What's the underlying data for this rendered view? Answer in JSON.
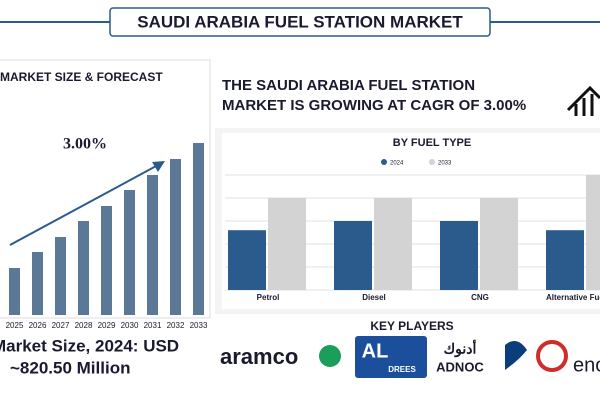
{
  "header": {
    "title": "SAUDI ARABIA FUEL STATION MARKET"
  },
  "headline": [
    "THE SAUDI ARABIA FUEL STATION",
    "MARKET IS GROWING AT CAGR OF 3.00%"
  ],
  "market_size": [
    "Market Size, 2024: USD",
    "~820.50 Million"
  ],
  "chart_data": [
    {
      "type": "bar",
      "title": "MARKET SIZE & FORECAST",
      "annotation": "3.00%",
      "categories": [
        "2025",
        "2026",
        "2027",
        "2028",
        "2029",
        "2030",
        "2031",
        "2032",
        "2033"
      ],
      "values": [
        47,
        63,
        78,
        94,
        109,
        125,
        140,
        156,
        172
      ],
      "color": "#5b7896",
      "ylim": [
        0,
        180
      ]
    },
    {
      "type": "grouped-bar",
      "title": "BY FUEL TYPE",
      "categories": [
        "Petrol",
        "Diesel",
        "CNG",
        "Alternative Fuels (EV Charging, Hydrogen)"
      ],
      "series": [
        {
          "name": "2024",
          "color": "#2b5b8c",
          "values": [
            2.6,
            3,
            3,
            2.6
          ]
        },
        {
          "name": "2033",
          "color": "#d3d3d3",
          "values": [
            4,
            4,
            4,
            5
          ]
        }
      ],
      "ylim": [
        0,
        5
      ],
      "yticks": [
        0,
        1,
        2,
        3,
        4,
        5
      ],
      "grid": true
    }
  ],
  "key_players": {
    "title": "KEY PLAYERS",
    "logos": [
      "aramco",
      "AL",
      "DREES",
      "أدنوك",
      "ADNOC",
      "enoc"
    ]
  }
}
